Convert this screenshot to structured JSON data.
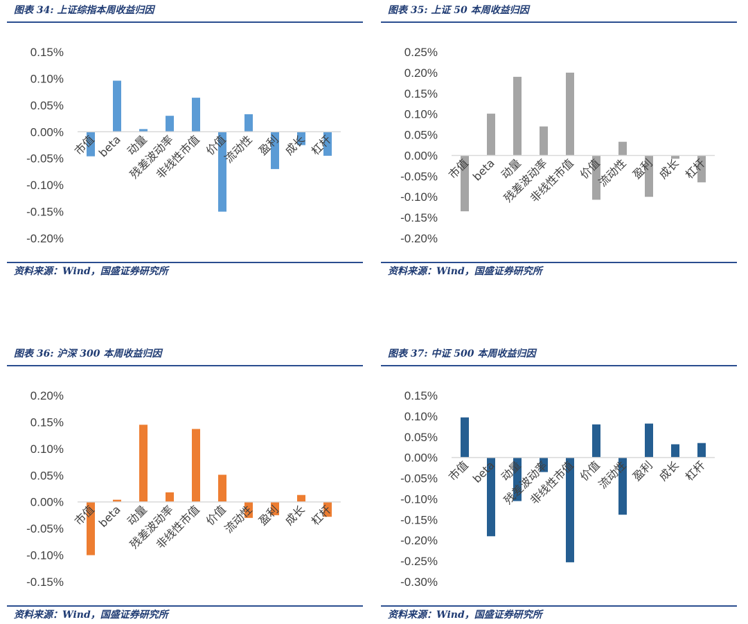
{
  "source_text": "资料来源：Wind，国盛证券研究所",
  "charts": [
    {
      "title": "图表 34:  上证综指本周收益归因",
      "color": "#5b9bd5"
    },
    {
      "title": "图表 35:  上证 50 本周收益归因",
      "color": "#a5a5a5"
    },
    {
      "title": "图表 36:  沪深 300 本周收益归因",
      "color": "#ed7d31"
    },
    {
      "title": "图表 37:  中证 500 本周收益归因",
      "color": "#255e91"
    }
  ],
  "chart_data": [
    {
      "type": "bar",
      "title": "图表 34:  上证综指本周收益归因",
      "categories": [
        "市值",
        "beta",
        "动量",
        "残差波动率",
        "非线性市值",
        "价值",
        "流动性",
        "盈利",
        "成长",
        "杠杆"
      ],
      "values": [
        -0.046,
        0.096,
        0.005,
        0.03,
        0.064,
        -0.15,
        0.033,
        -0.07,
        -0.025,
        -0.045
      ],
      "ylim": [
        -0.2,
        0.15
      ],
      "yticks": [
        "0.15%",
        "0.10%",
        "0.05%",
        "0.00%",
        "-0.05%",
        "-0.10%",
        "-0.15%",
        "-0.20%"
      ],
      "ytick_values": [
        0.15,
        0.1,
        0.05,
        0,
        -0.05,
        -0.1,
        -0.15,
        -0.2
      ],
      "unit": "%",
      "grid": false
    },
    {
      "type": "bar",
      "title": "图表 35:  上证 50 本周收益归因",
      "categories": [
        "市值",
        "beta",
        "动量",
        "残差波动率",
        "非线性市值",
        "价值",
        "流动性",
        "盈利",
        "成长",
        "杠杆"
      ],
      "values": [
        -0.135,
        0.101,
        0.19,
        0.07,
        0.2,
        -0.107,
        0.033,
        -0.1,
        -0.008,
        -0.065
      ],
      "ylim": [
        -0.2,
        0.25
      ],
      "yticks": [
        "0.25%",
        "0.20%",
        "0.15%",
        "0.10%",
        "0.05%",
        "0.00%",
        "-0.05%",
        "-0.10%",
        "-0.15%",
        "-0.20%"
      ],
      "ytick_values": [
        0.25,
        0.2,
        0.15,
        0.1,
        0.05,
        0,
        -0.05,
        -0.1,
        -0.15,
        -0.2
      ],
      "unit": "%",
      "grid": false
    },
    {
      "type": "bar",
      "title": "图表 36:  沪深 300 本周收益归因",
      "categories": [
        "市值",
        "beta",
        "动量",
        "残差波动率",
        "非线性市值",
        "价值",
        "流动性",
        "盈利",
        "成长",
        "杠杆"
      ],
      "values": [
        -0.1,
        0.004,
        0.145,
        0.018,
        0.137,
        0.051,
        -0.03,
        -0.025,
        0.013,
        -0.028
      ],
      "ylim": [
        -0.15,
        0.2
      ],
      "yticks": [
        "0.20%",
        "0.15%",
        "0.10%",
        "0.05%",
        "0.00%",
        "-0.05%",
        "-0.10%",
        "-0.15%"
      ],
      "ytick_values": [
        0.2,
        0.15,
        0.1,
        0.05,
        0,
        -0.05,
        -0.1,
        -0.15
      ],
      "unit": "%",
      "grid": false
    },
    {
      "type": "bar",
      "title": "图表 37:  中证 500 本周收益归因",
      "categories": [
        "市值",
        "beta",
        "动量",
        "残差波动率",
        "非线性市值",
        "价值",
        "流动性",
        "盈利",
        "成长",
        "杠杆"
      ],
      "values": [
        0.097,
        -0.19,
        -0.105,
        -0.035,
        -0.253,
        0.08,
        -0.138,
        0.082,
        0.032,
        0.035
      ],
      "ylim": [
        -0.3,
        0.15
      ],
      "yticks": [
        "0.15%",
        "0.10%",
        "0.05%",
        "0.00%",
        "-0.05%",
        "-0.10%",
        "-0.15%",
        "-0.20%",
        "-0.25%",
        "-0.30%"
      ],
      "ytick_values": [
        0.15,
        0.1,
        0.05,
        0,
        -0.05,
        -0.1,
        -0.15,
        -0.2,
        -0.25,
        -0.3
      ],
      "unit": "%",
      "grid": false
    }
  ]
}
